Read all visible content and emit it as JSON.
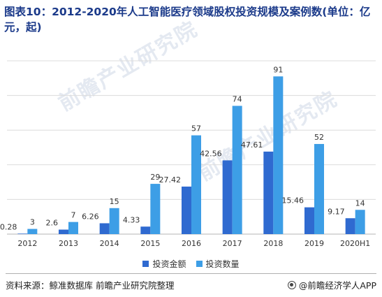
{
  "title": "图表10：2012-2020年人工智能医疗领域股权投资规模及案例数(单位：亿元，起)",
  "source": "资料来源：鲸准数据库 前瞻产业研究院整理",
  "brand": "@前瞻经济学人APP",
  "watermark": "前瞻产业研究院",
  "chart_data": {
    "type": "bar",
    "categories": [
      "2012",
      "2013",
      "2014",
      "2015",
      "2016",
      "2017",
      "2018",
      "2019",
      "2020H1"
    ],
    "series": [
      {
        "name": "投资金额",
        "color": "#2f6ad0",
        "values": [
          0.28,
          2.6,
          6.26,
          4.33,
          27.42,
          42.56,
          47.61,
          15.46,
          9.17
        ]
      },
      {
        "name": "投资数量",
        "color": "#3d9ee6",
        "values": [
          3,
          7,
          15,
          29,
          57,
          74,
          91,
          52,
          14
        ]
      }
    ],
    "ylim": [
      0,
      100
    ],
    "grid": true,
    "legend_position": "bottom"
  }
}
